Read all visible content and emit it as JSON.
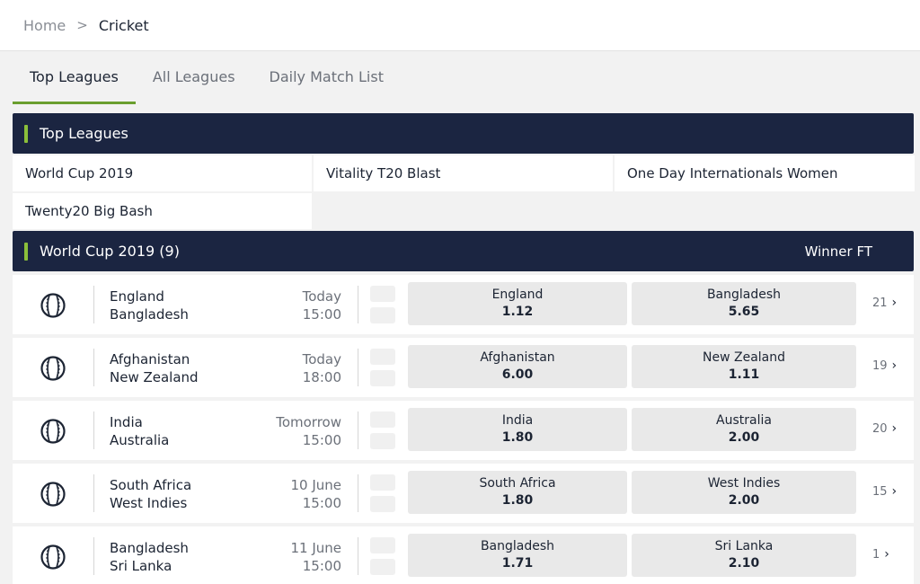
{
  "breadcrumb": {
    "home": "Home",
    "separator": ">",
    "current": "Cricket"
  },
  "tabs": [
    {
      "label": "Top Leagues",
      "active": true
    },
    {
      "label": "All Leagues",
      "active": false
    },
    {
      "label": "Daily Match List",
      "active": false
    }
  ],
  "top_leagues": {
    "title": "Top Leagues",
    "items": [
      "World Cup 2019",
      "Vitality T20 Blast",
      "One Day Internationals Women",
      "Twenty20 Big Bash"
    ]
  },
  "competition": {
    "title": "World Cup 2019 (9)",
    "market": "Winner FT",
    "matches": [
      {
        "home": "England",
        "away": "Bangladesh",
        "day": "Today",
        "time": "15:00",
        "home_odd": "1.12",
        "away_odd": "5.65",
        "more": "21"
      },
      {
        "home": "Afghanistan",
        "away": "New Zealand",
        "day": "Today",
        "time": "18:00",
        "home_odd": "6.00",
        "away_odd": "1.11",
        "more": "19"
      },
      {
        "home": "India",
        "away": "Australia",
        "day": "Tomorrow",
        "time": "15:00",
        "home_odd": "1.80",
        "away_odd": "2.00",
        "more": "20"
      },
      {
        "home": "South Africa",
        "away": "West Indies",
        "day": "10 June",
        "time": "15:00",
        "home_odd": "1.80",
        "away_odd": "2.00",
        "more": "15"
      },
      {
        "home": "Bangladesh",
        "away": "Sri Lanka",
        "day": "11 June",
        "time": "15:00",
        "home_odd": "1.71",
        "away_odd": "2.10",
        "more": "1"
      }
    ]
  },
  "colors": {
    "header_bg": "#1b2541",
    "accent": "#8bbf3a",
    "tab_underline": "#6a9e2e"
  },
  "icons": {
    "sport": "cricket-ball-icon",
    "more": "chevron-right-icon"
  }
}
